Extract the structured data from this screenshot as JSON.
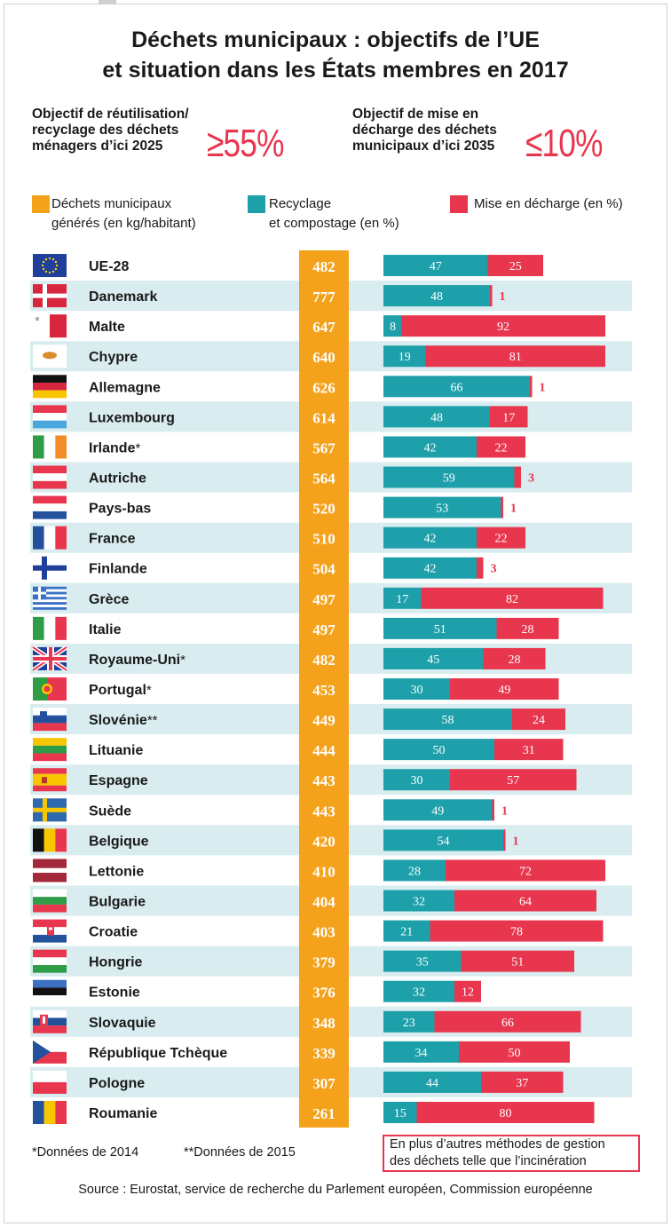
{
  "title": {
    "line1": "Déchets municipaux : objectifs de l’UE",
    "line2": "et situation dans les États membres en 2017"
  },
  "targets": {
    "reuse": {
      "line1": "Objectif de réutilisation/",
      "line2": "recyclage des déchets",
      "line3": "ménagers d’ici 2025",
      "value": "≥55%"
    },
    "landfill": {
      "line1": "Objectif de mise en",
      "line2": "décharge des déchets",
      "line3": "municipaux d’ici 2035",
      "value": "≤10%"
    }
  },
  "legend": {
    "generated": {
      "line1": "Déchets municipaux",
      "line2": "générés (en kg/habitant)",
      "color": "#f4a21c"
    },
    "recycling": {
      "line1": "Recyclage",
      "line2": "et compostage (en %)",
      "color": "#1da0a9"
    },
    "landfill": {
      "line1": "Mise en décharge (en %)",
      "color": "#e8364e"
    }
  },
  "chart_data": {
    "type": "bar",
    "subtype": "table-with-stacked-horizontal-bars",
    "series": [
      {
        "name": "Déchets municipaux générés (en kg/habitant)",
        "color": "#f4a21c",
        "values": [
          482,
          777,
          647,
          640,
          626,
          614,
          567,
          564,
          520,
          510,
          504,
          497,
          497,
          482,
          453,
          449,
          444,
          443,
          443,
          420,
          410,
          404,
          403,
          379,
          376,
          348,
          339,
          307,
          261
        ]
      },
      {
        "name": "Recyclage et compostage (en %)",
        "color": "#1da0a9",
        "values": [
          47,
          48,
          8,
          19,
          66,
          48,
          42,
          59,
          53,
          42,
          42,
          17,
          51,
          45,
          30,
          58,
          50,
          30,
          49,
          54,
          28,
          32,
          21,
          35,
          32,
          23,
          34,
          44,
          15
        ]
      },
      {
        "name": "Mise en décharge (en %)",
        "color": "#e8364e",
        "values": [
          25,
          1,
          92,
          81,
          1,
          17,
          22,
          3,
          1,
          22,
          3,
          82,
          28,
          28,
          49,
          24,
          31,
          57,
          1,
          1,
          72,
          64,
          78,
          51,
          12,
          66,
          50,
          37,
          80
        ]
      }
    ],
    "countries": [
      {
        "name": "UE-28",
        "note": "",
        "flag": "eu"
      },
      {
        "name": "Danemark",
        "note": "",
        "flag": "dk"
      },
      {
        "name": "Malte",
        "note": "",
        "flag": "mt"
      },
      {
        "name": "Chypre",
        "note": "",
        "flag": "cy"
      },
      {
        "name": "Allemagne",
        "note": "",
        "flag": "de"
      },
      {
        "name": "Luxembourg",
        "note": "",
        "flag": "lu"
      },
      {
        "name": "Irlande",
        "note": "*",
        "flag": "ie"
      },
      {
        "name": "Autriche",
        "note": "",
        "flag": "at"
      },
      {
        "name": "Pays-bas",
        "note": "",
        "flag": "nl"
      },
      {
        "name": "France",
        "note": "",
        "flag": "fr"
      },
      {
        "name": "Finlande",
        "note": "",
        "flag": "fi"
      },
      {
        "name": "Grèce",
        "note": "",
        "flag": "gr"
      },
      {
        "name": "Italie",
        "note": "",
        "flag": "it"
      },
      {
        "name": "Royaume-Uni",
        "note": "*",
        "flag": "uk"
      },
      {
        "name": "Portugal",
        "note": "*",
        "flag": "pt"
      },
      {
        "name": "Slovénie",
        "note": "**",
        "flag": "si"
      },
      {
        "name": "Lituanie",
        "note": "",
        "flag": "lt"
      },
      {
        "name": "Espagne",
        "note": "",
        "flag": "es"
      },
      {
        "name": "Suède",
        "note": "",
        "flag": "se"
      },
      {
        "name": "Belgique",
        "note": "",
        "flag": "be"
      },
      {
        "name": "Lettonie",
        "note": "",
        "flag": "lv"
      },
      {
        "name": "Bulgarie",
        "note": "",
        "flag": "bg"
      },
      {
        "name": "Croatie",
        "note": "",
        "flag": "hr"
      },
      {
        "name": "Hongrie",
        "note": "",
        "flag": "hu"
      },
      {
        "name": "Estonie",
        "note": "",
        "flag": "ee"
      },
      {
        "name": "Slovaquie",
        "note": "",
        "flag": "sk"
      },
      {
        "name": "République Tchèque",
        "note": "",
        "flag": "cz"
      },
      {
        "name": "Pologne",
        "note": "",
        "flag": "pl"
      },
      {
        "name": "Roumanie",
        "note": "",
        "flag": "ro"
      }
    ]
  },
  "footnotes": {
    "note1": "*Données de 2014",
    "note2": "**Données de 2015",
    "incineration_line1": "En plus d’autres méthodes de gestion",
    "incineration_line2": "des déchets telle que l’incinération"
  },
  "source": "Source : Eurostat, service de recherche du Parlement européen, Commission européenne"
}
